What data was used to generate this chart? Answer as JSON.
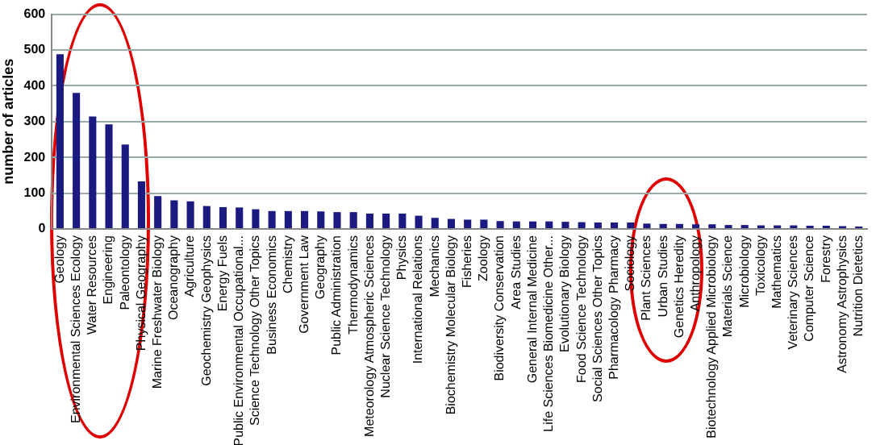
{
  "chart_data": {
    "type": "bar",
    "ylabel": "number of articles",
    "categories": [
      "Geology",
      "Environmental Sciences Ecology",
      "Water Resources",
      "Engineering",
      "Paleontology",
      "Physical Geography",
      "Marine Freshwater Biology",
      "Oceanography",
      "Agriculture",
      "Geochemistry Geophysics",
      "Energy Fuels",
      "Public Environmental Occupational...",
      "Science Technology Other Topics",
      "Business Economics",
      "Chemistry",
      "Government Law",
      "Geography",
      "Public Administration",
      "Thermodynamics",
      "Meteorology Atmospheric Sciences",
      "Nuclear Science Technology",
      "Physics",
      "International Relations",
      "Mechanics",
      "Biochemistry Molecular Biology",
      "Fisheries",
      "Zoology",
      "Biodiversity Conservation",
      "Area Studies",
      "General Internal Medicine",
      "Life Sciences Biomedicine Other...",
      "Evolutionary Biology",
      "Food Science Technology",
      "Social Sciences Other Topics",
      "Pharmacology Pharmacy",
      "Sociology",
      "Plant Sciences",
      "Urban Studies",
      "Genetics Heredity",
      "Anthropology",
      "Biotechnology Applied Microbiology",
      "Materials Science",
      "Microbiology",
      "Toxicology",
      "Mathematics",
      "Veterinary Sciences",
      "Computer Science",
      "Forestry",
      "Astronomy Astrophysics",
      "Nutrition Dietetics"
    ],
    "values": [
      488,
      380,
      314,
      292,
      236,
      133,
      92,
      80,
      77,
      64,
      61,
      60,
      55,
      50,
      50,
      50,
      49,
      47,
      47,
      43,
      43,
      43,
      37,
      31,
      28,
      26,
      26,
      22,
      21,
      21,
      21,
      20,
      19,
      18,
      18,
      18,
      15,
      14,
      14,
      13,
      13,
      11,
      11,
      10,
      10,
      10,
      9,
      9,
      8,
      7
    ],
    "color": "#1a1a80",
    "ylim": [
      0,
      600
    ],
    "yticks": [
      0,
      100,
      200,
      300,
      400,
      500,
      600
    ],
    "grid": "y",
    "legend": false
  }
}
